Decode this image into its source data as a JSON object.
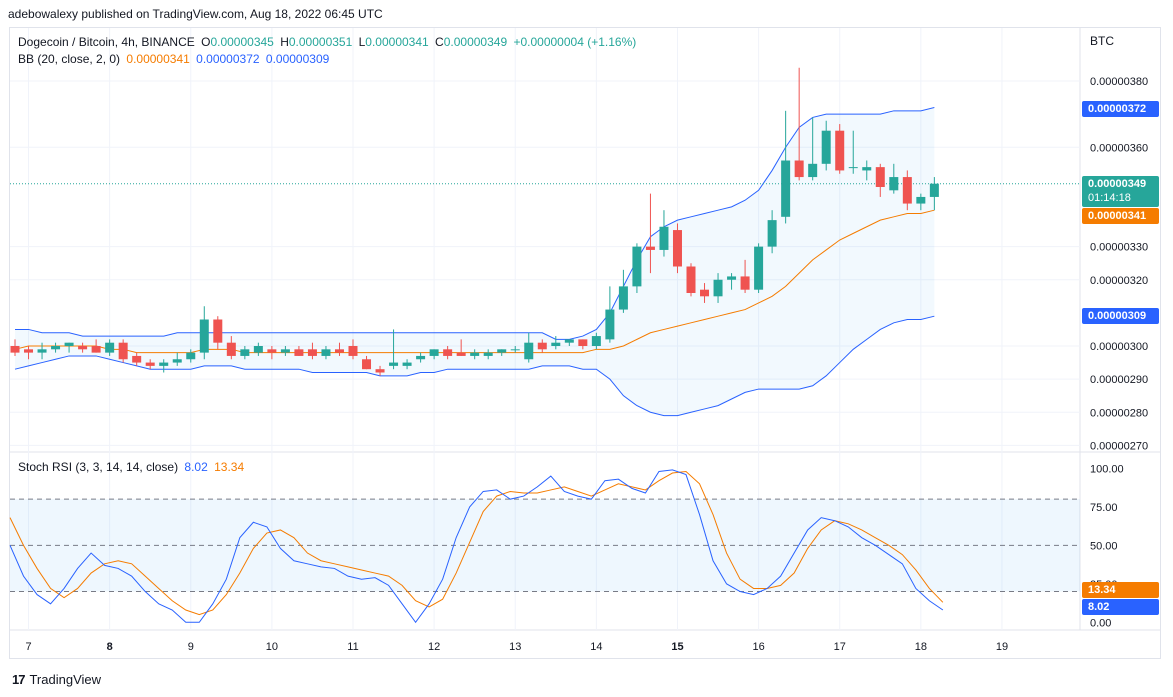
{
  "publisher_line": "adebowalexy published on TradingView.com, Aug 18, 2022 06:45 UTC",
  "header": {
    "symbol": "Dogecoin / Bitcoin, 4h, BINANCE",
    "o_label": "O",
    "o_value": "0.00000345",
    "h_label": "H",
    "h_value": "0.00000351",
    "l_label": "L",
    "l_value": "0.00000341",
    "c_label": "C",
    "c_value": "0.00000349",
    "change": "+0.00000004 (+1.16%)"
  },
  "bb_legend": {
    "label": "BB (20, close, 2, 0)",
    "basis": "0.00000341",
    "upper": "0.00000372",
    "lower": "0.00000309"
  },
  "stoch_legend": {
    "label": "Stoch RSI (3, 3, 14, 14, close)",
    "k": "8.02",
    "d": "13.34"
  },
  "currency": "BTC",
  "price_tags": {
    "upper": "0.00000372",
    "last": "0.00000349",
    "countdown": "01:14:18",
    "basis": "0.00000341",
    "lower": "0.00000309"
  },
  "stoch_tags": {
    "d": "13.34",
    "k": "8.02"
  },
  "brand": "TradingView",
  "colors": {
    "up": "#26a69a",
    "down": "#ef5350",
    "basis": "#f57c00",
    "bands": "#2962ff",
    "k": "#2962ff",
    "d": "#f57c00"
  },
  "chart_data": [
    {
      "type": "candlestick",
      "title": "Dogecoin / Bitcoin, 4h, BINANCE",
      "y_unit": "BTC",
      "ylim": [
        2.68e-06,
        3.96e-06
      ],
      "y_ticks": [
        "0.00000380",
        "0.00000360",
        "0.00000330",
        "0.00000320",
        "0.00000300",
        "0.00000290",
        "0.00000280",
        "0.00000270"
      ],
      "x_ticks": [
        "7",
        "8",
        "9",
        "10",
        "11",
        "12",
        "13",
        "14",
        "15",
        "16",
        "17",
        "18",
        "19"
      ],
      "grid": true,
      "candles": [
        {
          "o": 3e-06,
          "h": 3.02e-06,
          "l": 2.97e-06,
          "c": 2.98e-06
        },
        {
          "o": 2.99e-06,
          "h": 3e-06,
          "l": 2.96e-06,
          "c": 2.98e-06
        },
        {
          "o": 2.98e-06,
          "h": 3.01e-06,
          "l": 2.96e-06,
          "c": 2.99e-06
        },
        {
          "o": 2.99e-06,
          "h": 3.01e-06,
          "l": 2.98e-06,
          "c": 3e-06
        },
        {
          "o": 3e-06,
          "h": 3.01e-06,
          "l": 2.98e-06,
          "c": 3.01e-06
        },
        {
          "o": 3e-06,
          "h": 3.01e-06,
          "l": 2.98e-06,
          "c": 2.99e-06
        },
        {
          "o": 3e-06,
          "h": 3.02e-06,
          "l": 2.98e-06,
          "c": 2.98e-06
        },
        {
          "o": 2.98e-06,
          "h": 3.02e-06,
          "l": 2.97e-06,
          "c": 3.01e-06
        },
        {
          "o": 3.01e-06,
          "h": 3.02e-06,
          "l": 2.95e-06,
          "c": 2.96e-06
        },
        {
          "o": 2.97e-06,
          "h": 2.98e-06,
          "l": 2.94e-06,
          "c": 2.95e-06
        },
        {
          "o": 2.95e-06,
          "h": 2.96e-06,
          "l": 2.93e-06,
          "c": 2.94e-06
        },
        {
          "o": 2.94e-06,
          "h": 2.96e-06,
          "l": 2.92e-06,
          "c": 2.95e-06
        },
        {
          "o": 2.95e-06,
          "h": 2.98e-06,
          "l": 2.94e-06,
          "c": 2.96e-06
        },
        {
          "o": 2.96e-06,
          "h": 2.99e-06,
          "l": 2.95e-06,
          "c": 2.98e-06
        },
        {
          "o": 2.98e-06,
          "h": 3.12e-06,
          "l": 2.96e-06,
          "c": 3.08e-06
        },
        {
          "o": 3.08e-06,
          "h": 3.09e-06,
          "l": 2.99e-06,
          "c": 3.01e-06
        },
        {
          "o": 3.01e-06,
          "h": 3.03e-06,
          "l": 2.96e-06,
          "c": 2.97e-06
        },
        {
          "o": 2.97e-06,
          "h": 3e-06,
          "l": 2.96e-06,
          "c": 2.99e-06
        },
        {
          "o": 2.98e-06,
          "h": 3.01e-06,
          "l": 2.97e-06,
          "c": 3e-06
        },
        {
          "o": 2.99e-06,
          "h": 3e-06,
          "l": 2.96e-06,
          "c": 2.98e-06
        },
        {
          "o": 2.98e-06,
          "h": 3e-06,
          "l": 2.97e-06,
          "c": 2.99e-06
        },
        {
          "o": 2.99e-06,
          "h": 3e-06,
          "l": 2.97e-06,
          "c": 2.97e-06
        },
        {
          "o": 2.99e-06,
          "h": 3.01e-06,
          "l": 2.96e-06,
          "c": 2.97e-06
        },
        {
          "o": 2.97e-06,
          "h": 3e-06,
          "l": 2.96e-06,
          "c": 2.99e-06
        },
        {
          "o": 2.99e-06,
          "h": 3.01e-06,
          "l": 2.97e-06,
          "c": 2.98e-06
        },
        {
          "o": 3e-06,
          "h": 3.02e-06,
          "l": 2.96e-06,
          "c": 2.97e-06
        },
        {
          "o": 2.96e-06,
          "h": 2.97e-06,
          "l": 2.93e-06,
          "c": 2.93e-06
        },
        {
          "o": 2.93e-06,
          "h": 2.94e-06,
          "l": 2.91e-06,
          "c": 2.92e-06
        },
        {
          "o": 2.94e-06,
          "h": 3.05e-06,
          "l": 2.93e-06,
          "c": 2.95e-06
        },
        {
          "o": 2.94e-06,
          "h": 2.96e-06,
          "l": 2.93e-06,
          "c": 2.95e-06
        },
        {
          "o": 2.96e-06,
          "h": 2.98e-06,
          "l": 2.95e-06,
          "c": 2.97e-06
        },
        {
          "o": 2.97e-06,
          "h": 2.99e-06,
          "l": 2.96e-06,
          "c": 2.99e-06
        },
        {
          "o": 2.99e-06,
          "h": 3e-06,
          "l": 2.96e-06,
          "c": 2.97e-06
        },
        {
          "o": 2.98e-06,
          "h": 3.02e-06,
          "l": 2.97e-06,
          "c": 2.97e-06
        },
        {
          "o": 2.97e-06,
          "h": 2.99e-06,
          "l": 2.96e-06,
          "c": 2.98e-06
        },
        {
          "o": 2.97e-06,
          "h": 2.99e-06,
          "l": 2.96e-06,
          "c": 2.98e-06
        },
        {
          "o": 2.98e-06,
          "h": 2.99e-06,
          "l": 2.97e-06,
          "c": 2.99e-06
        },
        {
          "o": 2.99e-06,
          "h": 3e-06,
          "l": 2.98e-06,
          "c": 2.99e-06
        },
        {
          "o": 2.96e-06,
          "h": 3.04e-06,
          "l": 2.95e-06,
          "c": 3.01e-06
        },
        {
          "o": 3.01e-06,
          "h": 3.02e-06,
          "l": 2.98e-06,
          "c": 2.99e-06
        },
        {
          "o": 3e-06,
          "h": 3.03e-06,
          "l": 2.99e-06,
          "c": 3.01e-06
        },
        {
          "o": 3.01e-06,
          "h": 3.02e-06,
          "l": 3e-06,
          "c": 3.02e-06
        },
        {
          "o": 3.02e-06,
          "h": 3.02e-06,
          "l": 2.99e-06,
          "c": 3e-06
        },
        {
          "o": 3e-06,
          "h": 3.04e-06,
          "l": 2.99e-06,
          "c": 3.03e-06
        },
        {
          "o": 3.02e-06,
          "h": 3.18e-06,
          "l": 3.01e-06,
          "c": 3.11e-06
        },
        {
          "o": 3.11e-06,
          "h": 3.23e-06,
          "l": 3.1e-06,
          "c": 3.18e-06
        },
        {
          "o": 3.18e-06,
          "h": 3.31e-06,
          "l": 3.16e-06,
          "c": 3.3e-06
        },
        {
          "o": 3.3e-06,
          "h": 3.46e-06,
          "l": 3.22e-06,
          "c": 3.29e-06
        },
        {
          "o": 3.29e-06,
          "h": 3.41e-06,
          "l": 3.27e-06,
          "c": 3.36e-06
        },
        {
          "o": 3.35e-06,
          "h": 3.37e-06,
          "l": 3.22e-06,
          "c": 3.24e-06
        },
        {
          "o": 3.24e-06,
          "h": 3.25e-06,
          "l": 3.15e-06,
          "c": 3.16e-06
        },
        {
          "o": 3.17e-06,
          "h": 3.19e-06,
          "l": 3.13e-06,
          "c": 3.15e-06
        },
        {
          "o": 3.15e-06,
          "h": 3.22e-06,
          "l": 3.13e-06,
          "c": 3.2e-06
        },
        {
          "o": 3.2e-06,
          "h": 3.22e-06,
          "l": 3.17e-06,
          "c": 3.21e-06
        },
        {
          "o": 3.21e-06,
          "h": 3.26e-06,
          "l": 3.16e-06,
          "c": 3.17e-06
        },
        {
          "o": 3.17e-06,
          "h": 3.31e-06,
          "l": 3.16e-06,
          "c": 3.3e-06
        },
        {
          "o": 3.3e-06,
          "h": 3.41e-06,
          "l": 3.28e-06,
          "c": 3.38e-06
        },
        {
          "o": 3.39e-06,
          "h": 3.71e-06,
          "l": 3.37e-06,
          "c": 3.56e-06
        },
        {
          "o": 3.56e-06,
          "h": 3.84e-06,
          "l": 3.5e-06,
          "c": 3.51e-06
        },
        {
          "o": 3.51e-06,
          "h": 3.69e-06,
          "l": 3.5e-06,
          "c": 3.55e-06
        },
        {
          "o": 3.55e-06,
          "h": 3.68e-06,
          "l": 3.53e-06,
          "c": 3.65e-06
        },
        {
          "o": 3.65e-06,
          "h": 3.67e-06,
          "l": 3.52e-06,
          "c": 3.53e-06
        },
        {
          "o": 3.54e-06,
          "h": 3.65e-06,
          "l": 3.52e-06,
          "c": 3.54e-06
        },
        {
          "o": 3.53e-06,
          "h": 3.56e-06,
          "l": 3.5e-06,
          "c": 3.54e-06
        },
        {
          "o": 3.54e-06,
          "h": 3.55e-06,
          "l": 3.45e-06,
          "c": 3.48e-06
        },
        {
          "o": 3.47e-06,
          "h": 3.55e-06,
          "l": 3.46e-06,
          "c": 3.51e-06
        },
        {
          "o": 3.51e-06,
          "h": 3.53e-06,
          "l": 3.41e-06,
          "c": 3.43e-06
        },
        {
          "o": 3.43e-06,
          "h": 3.46e-06,
          "l": 3.41e-06,
          "c": 3.45e-06
        },
        {
          "o": 3.45e-06,
          "h": 3.51e-06,
          "l": 3.41e-06,
          "c": 3.49e-06
        }
      ],
      "bollinger": {
        "label": "BB (20, close, 2, 0)",
        "upper": [
          3.05e-06,
          3.05e-06,
          3.04e-06,
          3.04e-06,
          3.04e-06,
          3.03e-06,
          3.03e-06,
          3.03e-06,
          3.03e-06,
          3.03e-06,
          3.03e-06,
          3.03e-06,
          3.04e-06,
          3.04e-06,
          3.04e-06,
          3.04e-06,
          3.04e-06,
          3.04e-06,
          3.04e-06,
          3.04e-06,
          3.04e-06,
          3.04e-06,
          3.04e-06,
          3.04e-06,
          3.04e-06,
          3.04e-06,
          3.04e-06,
          3.04e-06,
          3.04e-06,
          3.04e-06,
          3.04e-06,
          3.04e-06,
          3.04e-06,
          3.04e-06,
          3.04e-06,
          3.04e-06,
          3.04e-06,
          3.04e-06,
          3.04e-06,
          3.04e-06,
          3.02e-06,
          3.02e-06,
          3.03e-06,
          3.05e-06,
          3.1e-06,
          3.18e-06,
          3.26e-06,
          3.33e-06,
          3.36e-06,
          3.38e-06,
          3.39e-06,
          3.4e-06,
          3.41e-06,
          3.42e-06,
          3.44e-06,
          3.47e-06,
          3.53e-06,
          3.6e-06,
          3.66e-06,
          3.69e-06,
          3.7e-06,
          3.7e-06,
          3.7e-06,
          3.7e-06,
          3.7e-06,
          3.71e-06,
          3.71e-06,
          3.71e-06,
          3.72e-06
        ],
        "basis": [
          2.99e-06,
          3e-06,
          3e-06,
          3e-06,
          3e-06,
          3e-06,
          3e-06,
          2.99e-06,
          2.99e-06,
          2.98e-06,
          2.98e-06,
          2.98e-06,
          2.98e-06,
          2.98e-06,
          2.99e-06,
          2.99e-06,
          2.99e-06,
          2.98e-06,
          2.98e-06,
          2.98e-06,
          2.98e-06,
          2.98e-06,
          2.98e-06,
          2.98e-06,
          2.98e-06,
          2.98e-06,
          2.98e-06,
          2.98e-06,
          2.98e-06,
          2.98e-06,
          2.98e-06,
          2.98e-06,
          2.98e-06,
          2.98e-06,
          2.98e-06,
          2.98e-06,
          2.98e-06,
          2.98e-06,
          2.98e-06,
          2.98e-06,
          2.98e-06,
          2.98e-06,
          2.98e-06,
          2.99e-06,
          2.99e-06,
          3e-06,
          3.02e-06,
          3.04e-06,
          3.05e-06,
          3.06e-06,
          3.07e-06,
          3.08e-06,
          3.09e-06,
          3.1e-06,
          3.11e-06,
          3.13e-06,
          3.15e-06,
          3.18e-06,
          3.22e-06,
          3.26e-06,
          3.29e-06,
          3.32e-06,
          3.34e-06,
          3.36e-06,
          3.38e-06,
          3.39e-06,
          3.4e-06,
          3.4e-06,
          3.41e-06
        ],
        "lower": [
          2.93e-06,
          2.94e-06,
          2.95e-06,
          2.96e-06,
          2.97e-06,
          2.97e-06,
          2.97e-06,
          2.96e-06,
          2.95e-06,
          2.94e-06,
          2.93e-06,
          2.93e-06,
          2.93e-06,
          2.93e-06,
          2.94e-06,
          2.94e-06,
          2.94e-06,
          2.93e-06,
          2.93e-06,
          2.93e-06,
          2.93e-06,
          2.93e-06,
          2.92e-06,
          2.92e-06,
          2.92e-06,
          2.92e-06,
          2.92e-06,
          2.91e-06,
          2.91e-06,
          2.91e-06,
          2.92e-06,
          2.92e-06,
          2.93e-06,
          2.93e-06,
          2.93e-06,
          2.93e-06,
          2.93e-06,
          2.93e-06,
          2.93e-06,
          2.94e-06,
          2.94e-06,
          2.94e-06,
          2.93e-06,
          2.93e-06,
          2.9e-06,
          2.85e-06,
          2.82e-06,
          2.8e-06,
          2.79e-06,
          2.79e-06,
          2.8e-06,
          2.81e-06,
          2.82e-06,
          2.84e-06,
          2.86e-06,
          2.87e-06,
          2.87e-06,
          2.87e-06,
          2.87e-06,
          2.88e-06,
          2.91e-06,
          2.95e-06,
          2.99e-06,
          3.02e-06,
          3.05e-06,
          3.07e-06,
          3.08e-06,
          3.08e-06,
          3.09e-06
        ]
      }
    },
    {
      "type": "line",
      "title": "Stoch RSI (3, 3, 14, 14, close)",
      "ylim": [
        -5,
        110
      ],
      "y_ticks": [
        100,
        75,
        50,
        25,
        0
      ],
      "y_tick_labels": [
        "100.00",
        "75.00",
        "50.00",
        "25.00",
        "0.00"
      ],
      "bands": [
        20,
        80
      ],
      "series": [
        {
          "name": "K",
          "values": [
            50,
            30,
            18,
            12,
            22,
            35,
            45,
            37,
            35,
            30,
            20,
            12,
            8,
            0,
            0,
            12,
            28,
            55,
            65,
            62,
            48,
            40,
            38,
            36,
            35,
            30,
            28,
            29,
            24,
            12,
            0,
            12,
            28,
            55,
            75,
            85,
            86,
            80,
            82,
            88,
            95,
            85,
            82,
            80,
            92,
            93,
            87,
            84,
            98,
            99,
            96,
            70,
            40,
            25,
            20,
            18,
            22,
            30,
            45,
            60,
            68,
            66,
            62,
            55,
            50,
            44,
            38,
            22,
            14,
            8
          ]
        },
        {
          "name": "D",
          "values": [
            68,
            50,
            35,
            22,
            16,
            22,
            32,
            38,
            40,
            38,
            30,
            22,
            14,
            8,
            5,
            8,
            18,
            32,
            48,
            58,
            60,
            55,
            45,
            40,
            38,
            36,
            34,
            32,
            30,
            24,
            14,
            10,
            15,
            32,
            52,
            72,
            82,
            85,
            84,
            84,
            86,
            88,
            85,
            82,
            86,
            90,
            88,
            86,
            92,
            97,
            98,
            90,
            70,
            45,
            28,
            22,
            22,
            24,
            32,
            48,
            60,
            66,
            64,
            60,
            55,
            50,
            44,
            34,
            22,
            13
          ]
        }
      ]
    }
  ]
}
